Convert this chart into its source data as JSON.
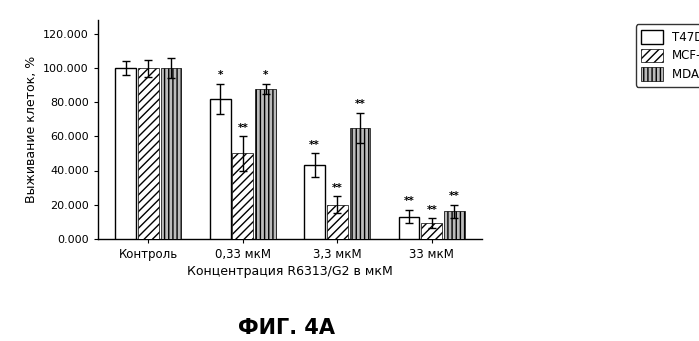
{
  "categories": [
    "Контроль",
    "0,33 мкМ",
    "3,3 мкМ",
    "33 мкМ"
  ],
  "series": {
    "T47D": [
      100.0,
      82.0,
      43.0,
      13.0
    ],
    "MCF-7": [
      100.0,
      50.0,
      20.0,
      9.0
    ],
    "MDA MB 231": [
      100.0,
      88.0,
      65.0,
      16.0
    ]
  },
  "errors": {
    "T47D": [
      4.0,
      9.0,
      7.0,
      4.0
    ],
    "MCF-7": [
      5.0,
      10.0,
      5.0,
      3.0
    ],
    "MDA MB 231": [
      6.0,
      3.0,
      9.0,
      4.0
    ]
  },
  "significance": {
    "T47D": [
      null,
      "*",
      "**",
      "**"
    ],
    "MCF-7": [
      null,
      "**",
      "**",
      "**"
    ],
    "MDA MB 231": [
      null,
      "*",
      "**",
      "**"
    ]
  },
  "ylabel": "Выживание клеток, %",
  "xlabel": "Концентрация R6313/G2 в мкМ",
  "title": "ФИГ. 4A",
  "ylim": [
    0,
    128
  ],
  "yticks": [
    0.0,
    20.0,
    40.0,
    60.0,
    80.0,
    100.0,
    120.0
  ],
  "ytick_labels": [
    "0.000",
    "20.000",
    "40.000",
    "60.000",
    "80.000",
    "100.000",
    "120.000"
  ]
}
